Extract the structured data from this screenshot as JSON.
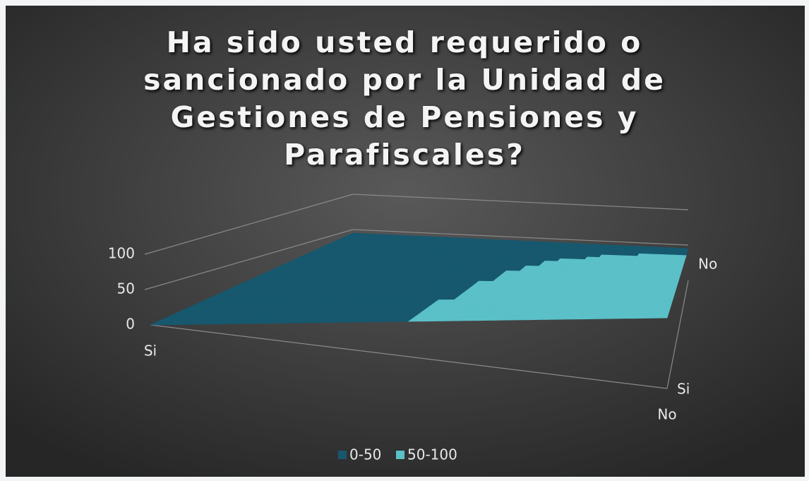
{
  "chart_data": {
    "type": "surface",
    "title": "Ha sido usted requerido o sancionado por la Unidad de Gestiones de Pensiones y Parafiscales?",
    "categories": [
      "Si",
      "No"
    ],
    "series": [
      {
        "name": "Si",
        "values": [
          0,
          100
        ]
      },
      {
        "name": "No",
        "values": [
          45,
          45
        ]
      }
    ],
    "bands": [
      {
        "name": "0-50",
        "color": "#17586e"
      },
      {
        "name": "50-100",
        "color": "#5bc0c8"
      }
    ],
    "zlim": [
      0,
      100
    ],
    "zticks": [
      0,
      50,
      100
    ],
    "grid": true,
    "legend": "bottom"
  }
}
